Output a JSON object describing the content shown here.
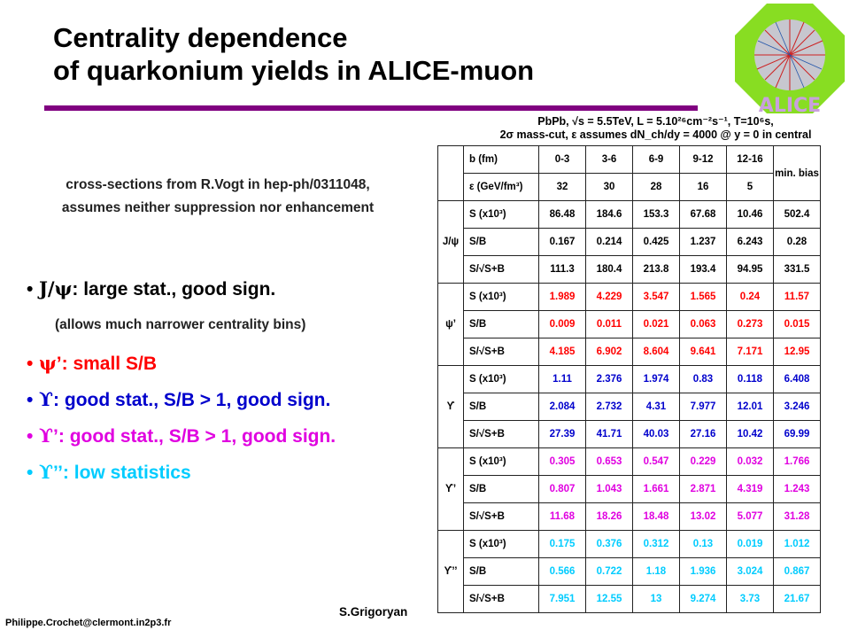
{
  "title": {
    "line1": "Centrality dependence",
    "line2": "of quarkonium yields in ALICE-muon"
  },
  "logo": {
    "text": "ALICE"
  },
  "subtitle": {
    "line1": "cross-sections from R.Vogt in hep-ph/0311048,",
    "line2": "assumes neither suppression nor enhancement"
  },
  "bullets": [
    {
      "glyph": "J/ψ",
      "text": ": large stat., good sign.",
      "color": "#000000"
    },
    {
      "glyph": "ψ",
      "text": "’: small S/B",
      "color": "#ff0000"
    },
    {
      "glyph": "ϒ",
      "text": ": good stat., S/B > 1, good sign.",
      "color": "#0000cc"
    },
    {
      "glyph": "ϒ",
      "text": "’: good stat., S/B > 1, good sign.",
      "color": "#e000e0"
    },
    {
      "glyph": "ϒ",
      "text": "’’: low statistics",
      "color": "#00ccff"
    }
  ],
  "bullet_note": "(allows much narrower centrality bins)",
  "table": {
    "header": {
      "line1": "PbPb, √s = 5.5TeV, L = 5.10²⁶cm⁻²s⁻¹, T=10⁶s,",
      "line2": "2σ mass-cut, ε assumes dN_ch/dy = 4000 @ y = 0 in central"
    },
    "columns": {
      "b_label": "b (fm)",
      "b": [
        "0-3",
        "3-6",
        "6-9",
        "9-12",
        "12-16"
      ],
      "eps_label": "ε (GeV/fm³)",
      "eps": [
        "32",
        "30",
        "28",
        "16",
        "5"
      ],
      "minbias": "min. bias"
    },
    "groups": [
      {
        "label": "J/ψ",
        "color": "#000000",
        "rows": [
          {
            "q": "S (x10³)",
            "v": [
              "86.48",
              "184.6",
              "153.3",
              "67.68",
              "10.46",
              "502.4"
            ]
          },
          {
            "q": "S/B",
            "v": [
              "0.167",
              "0.214",
              "0.425",
              "1.237",
              "6.243",
              "0.28"
            ]
          },
          {
            "q": "S/√S+B",
            "v": [
              "111.3",
              "180.4",
              "213.8",
              "193.4",
              "94.95",
              "331.5"
            ]
          }
        ]
      },
      {
        "label": "ψ’",
        "color": "#ff0000",
        "rows": [
          {
            "q": "S (x10³)",
            "v": [
              "1.989",
              "4.229",
              "3.547",
              "1.565",
              "0.24",
              "11.57"
            ]
          },
          {
            "q": "S/B",
            "v": [
              "0.009",
              "0.011",
              "0.021",
              "0.063",
              "0.273",
              "0.015"
            ]
          },
          {
            "q": "S/√S+B",
            "v": [
              "4.185",
              "6.902",
              "8.604",
              "9.641",
              "7.171",
              "12.95"
            ]
          }
        ]
      },
      {
        "label": "ϒ",
        "color": "#0000cc",
        "rows": [
          {
            "q": "S (x10³)",
            "v": [
              "1.11",
              "2.376",
              "1.974",
              "0.83",
              "0.118",
              "6.408"
            ]
          },
          {
            "q": "S/B",
            "v": [
              "2.084",
              "2.732",
              "4.31",
              "7.977",
              "12.01",
              "3.246"
            ]
          },
          {
            "q": "S/√S+B",
            "v": [
              "27.39",
              "41.71",
              "40.03",
              "27.16",
              "10.42",
              "69.99"
            ]
          }
        ]
      },
      {
        "label": "ϒ’",
        "color": "#e000e0",
        "rows": [
          {
            "q": "S (x10³)",
            "v": [
              "0.305",
              "0.653",
              "0.547",
              "0.229",
              "0.032",
              "1.766"
            ]
          },
          {
            "q": "S/B",
            "v": [
              "0.807",
              "1.043",
              "1.661",
              "2.871",
              "4.319",
              "1.243"
            ]
          },
          {
            "q": "S/√S+B",
            "v": [
              "11.68",
              "18.26",
              "18.48",
              "13.02",
              "5.077",
              "31.28"
            ]
          }
        ]
      },
      {
        "label": "ϒ’’",
        "color": "#00ccff",
        "rows": [
          {
            "q": "S (x10³)",
            "v": [
              "0.175",
              "0.376",
              "0.312",
              "0.13",
              "0.019",
              "1.012"
            ]
          },
          {
            "q": "S/B",
            "v": [
              "0.566",
              "0.722",
              "1.18",
              "1.936",
              "3.024",
              "0.867"
            ]
          },
          {
            "q": "S/√S+B",
            "v": [
              "7.951",
              "12.55",
              "13",
              "9.274",
              "3.73",
              "21.67"
            ]
          }
        ]
      }
    ]
  },
  "footer": {
    "author": "S.Grigoryan",
    "email": "Philippe.Crochet@clermont.in2p3.fr"
  }
}
